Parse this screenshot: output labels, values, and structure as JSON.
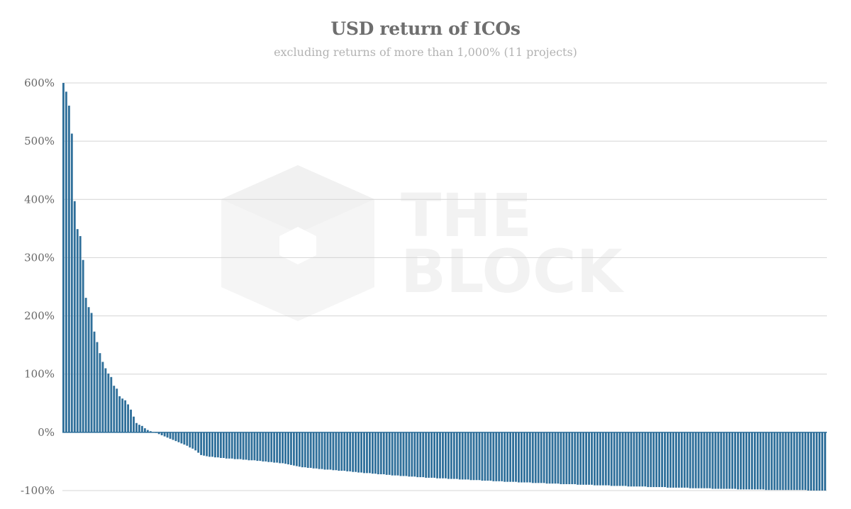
{
  "chart_data": {
    "type": "bar",
    "title": "USD return of ICOs",
    "subtitle": "excluding returns of more than 1,000% (11 projects)",
    "watermark": [
      "THE",
      "BLOCK"
    ],
    "xlabel": "",
    "ylabel": "",
    "ylim": [
      -100,
      600
    ],
    "yticks": [
      600,
      500,
      400,
      300,
      200,
      100,
      0,
      -100
    ],
    "ytick_labels": [
      "600%",
      "500%",
      "400%",
      "300%",
      "200%",
      "100%",
      "0%",
      "-100%"
    ],
    "grid": true,
    "legend": "none",
    "bar_color": "#2f6f9a",
    "values": [
      600,
      585,
      561,
      513,
      397,
      349,
      337,
      296,
      231,
      215,
      205,
      173,
      155,
      136,
      121,
      110,
      101,
      95,
      80,
      75,
      62,
      58,
      55,
      48,
      39,
      27,
      16,
      13,
      11,
      7,
      4,
      2,
      0,
      -1,
      -3,
      -5,
      -7,
      -9,
      -11,
      -13,
      -15,
      -17,
      -19,
      -21,
      -23,
      -26,
      -28,
      -31,
      -35,
      -39,
      -40,
      -41,
      -42,
      -42,
      -43,
      -43,
      -44,
      -44,
      -45,
      -45,
      -45,
      -46,
      -46,
      -46,
      -47,
      -47,
      -48,
      -48,
      -48,
      -49,
      -49,
      -50,
      -50,
      -51,
      -51,
      -52,
      -52,
      -53,
      -53,
      -54,
      -55,
      -56,
      -57,
      -58,
      -59,
      -60,
      -60,
      -61,
      -61,
      -62,
      -62,
      -63,
      -63,
      -64,
      -64,
      -64,
      -65,
      -65,
      -66,
      -66,
      -66,
      -67,
      -67,
      -68,
      -68,
      -69,
      -69,
      -70,
      -70,
      -70,
      -71,
      -71,
      -72,
      -72,
      -72,
      -73,
      -73,
      -74,
      -74,
      -74,
      -75,
      -75,
      -75,
      -76,
      -76,
      -76,
      -77,
      -77,
      -77,
      -78,
      -78,
      -78,
      -78,
      -79,
      -79,
      -79,
      -79,
      -80,
      -80,
      -80,
      -80,
      -81,
      -81,
      -81,
      -81,
      -82,
      -82,
      -82,
      -82,
      -83,
      -83,
      -83,
      -83,
      -84,
      -84,
      -84,
      -84,
      -85,
      -85,
      -85,
      -85,
      -85,
      -86,
      -86,
      -86,
      -86,
      -86,
      -87,
      -87,
      -87,
      -87,
      -87,
      -88,
      -88,
      -88,
      -88,
      -88,
      -89,
      -89,
      -89,
      -89,
      -89,
      -89,
      -90,
      -90,
      -90,
      -90,
      -90,
      -90,
      -91,
      -91,
      -91,
      -91,
      -91,
      -91,
      -92,
      -92,
      -92,
      -92,
      -92,
      -92,
      -93,
      -93,
      -93,
      -93,
      -93,
      -93,
      -93,
      -94,
      -94,
      -94,
      -94,
      -94,
      -94,
      -94,
      -95,
      -95,
      -95,
      -95,
      -95,
      -95,
      -95,
      -95,
      -96,
      -96,
      -96,
      -96,
      -96,
      -96,
      -96,
      -96,
      -97,
      -97,
      -97,
      -97,
      -97,
      -97,
      -97,
      -97,
      -97,
      -98,
      -98,
      -98,
      -98,
      -98,
      -98,
      -98,
      -98,
      -98,
      -98,
      -99,
      -99,
      -99,
      -99,
      -99,
      -99,
      -99,
      -99,
      -99,
      -99,
      -99,
      -99,
      -99,
      -99,
      -99,
      -100,
      -100,
      -100,
      -100,
      -100,
      -100,
      -100
    ]
  }
}
